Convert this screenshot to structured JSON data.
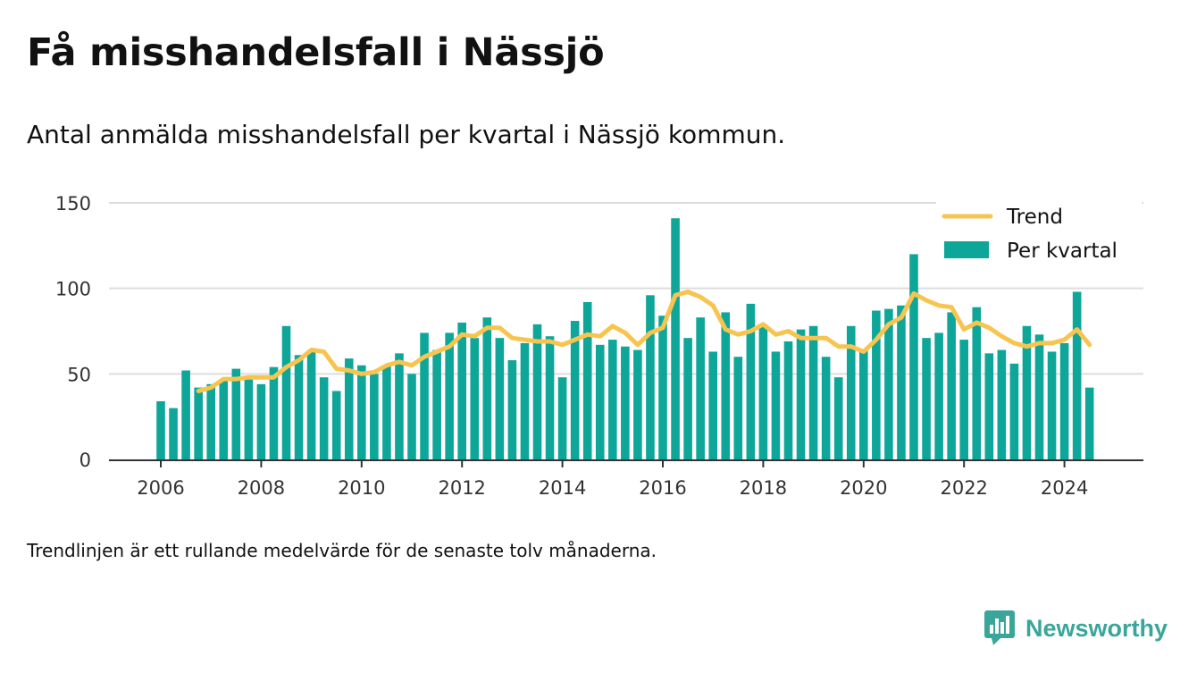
{
  "header": {
    "title": "Få misshandelsfall i Nässjö",
    "subtitle": "Antal anmälda misshandelsfall per kvartal i Nässjö kommun."
  },
  "footnote": "Trendlinjen är ett rullande medelvärde för de senaste tolv månaderna.",
  "brand": {
    "name": "Newsworthy"
  },
  "colors": {
    "bars": "#0ea699",
    "trend": "#f7c54f",
    "grid": "#dddddd",
    "axis": "#333333"
  },
  "chart_data": {
    "type": "bar",
    "x_unit": "year-quarter",
    "start": {
      "year": 2006,
      "quarter": 1
    },
    "ylim": [
      0,
      150
    ],
    "yticks": [
      0,
      50,
      100,
      150
    ],
    "xticks": [
      "2006",
      "2008",
      "2010",
      "2012",
      "2014",
      "2016",
      "2018",
      "2020",
      "2022",
      "2024"
    ],
    "grid": true,
    "legend": {
      "position": "top-right",
      "entries": [
        "Trend",
        "Per kvartal"
      ]
    },
    "series": [
      {
        "name": "Per kvartal",
        "kind": "bar",
        "values": [
          34,
          30,
          52,
          42,
          44,
          47,
          53,
          48,
          44,
          54,
          78,
          61,
          64,
          48,
          40,
          59,
          55,
          50,
          55,
          62,
          50,
          74,
          64,
          74,
          80,
          71,
          83,
          71,
          58,
          68,
          79,
          72,
          48,
          81,
          92,
          67,
          70,
          66,
          64,
          96,
          84,
          141,
          71,
          83,
          63,
          86,
          60,
          91,
          78,
          63,
          69,
          76,
          78,
          60,
          48,
          78,
          64,
          87,
          88,
          90,
          120,
          71,
          74,
          86,
          70,
          89,
          62,
          64,
          56,
          78,
          73,
          63,
          68,
          98,
          42
        ]
      },
      {
        "name": "Trend",
        "kind": "line",
        "values": [
          null,
          null,
          null,
          40,
          42,
          47,
          47,
          48,
          48,
          48,
          54,
          58,
          64,
          63,
          53,
          52,
          50,
          51,
          55,
          57,
          55,
          60,
          63,
          66,
          73,
          72,
          77,
          77,
          71,
          70,
          69,
          69,
          67,
          70,
          73,
          72,
          78,
          74,
          67,
          74,
          77,
          96,
          98,
          95,
          90,
          76,
          73,
          75,
          79,
          73,
          75,
          71,
          71,
          71,
          66,
          66,
          63,
          70,
          79,
          83,
          97,
          93,
          90,
          89,
          76,
          80,
          77,
          72,
          68,
          66,
          68,
          68,
          70,
          76,
          67
        ]
      }
    ]
  }
}
